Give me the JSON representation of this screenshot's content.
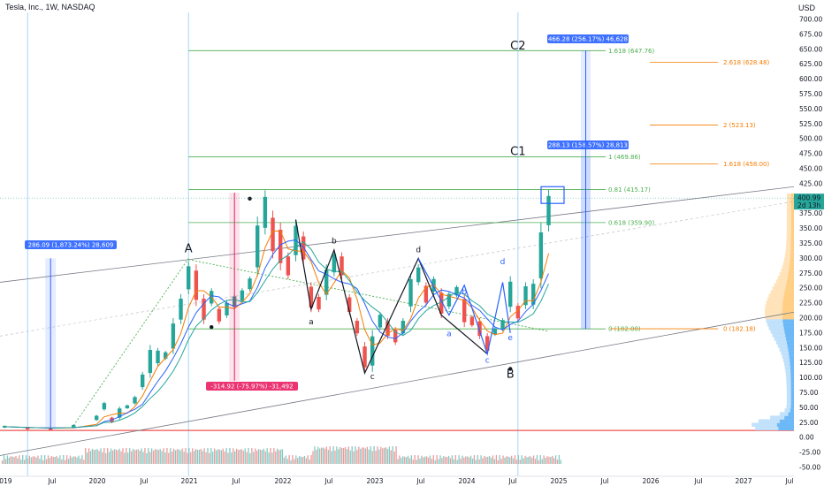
{
  "header": {
    "symbol_title": "Tesla, Inc., 1W, NASDAQ",
    "currency": "USD"
  },
  "colors": {
    "up": "#26a69a",
    "down": "#ef5350",
    "fib_green": "#4caf50",
    "fib_orange": "#f57c00",
    "measure_blue": "#2962ff",
    "drawing": "#131722",
    "wave_blue": "#2962ff",
    "price_tag": "#26a69a"
  },
  "price_axis": {
    "tag": "400.99",
    "tag_sub": "2d 13h"
  },
  "chart_data": {
    "type": "candlestick",
    "title": "Tesla, Inc., 1W, NASDAQ",
    "ylabel": "USD",
    "ylim": [
      -55,
      710
    ],
    "yticks": [
      "700.00",
      "675.00",
      "650.00",
      "625.00",
      "600.00",
      "575.00",
      "550.00",
      "525.00",
      "500.00",
      "475.00",
      "450.00",
      "425.00",
      "400.00",
      "375.00",
      "350.00",
      "325.00",
      "300.00",
      "275.00",
      "250.00",
      "225.00",
      "200.00",
      "175.00",
      "150.00",
      "125.00",
      "100.00",
      "75.00",
      "50.00",
      "25.00",
      "0.00",
      "-25.00",
      "-50.00"
    ],
    "xticks": [
      "2019",
      "Jul",
      "2020",
      "Jul",
      "2021",
      "Jul",
      "2022",
      "Jul",
      "2023",
      "Jul",
      "2024",
      "Jul",
      "2025",
      "Jul",
      "2026",
      "Jul",
      "2027",
      "Jul"
    ],
    "xlim": [
      "2019-01",
      "2027-10"
    ],
    "series": [
      {
        "name": "TSLA",
        "values": [
          [
            "2019-01",
            20.3,
            16.0
          ],
          [
            "2019-04",
            18.0,
            13.0
          ],
          [
            "2019-07",
            16.0,
            12.5
          ],
          [
            "2019-10",
            22.0,
            15.5
          ],
          [
            "2020-01",
            38.0,
            28.0
          ],
          [
            "2020-02",
            60.0,
            45.0
          ],
          [
            "2020-03",
            35.0,
            24.0
          ],
          [
            "2020-04",
            52.0,
            30.0
          ],
          [
            "2020-05",
            55.0,
            48.0
          ],
          [
            "2020-06",
            70.0,
            55.0
          ],
          [
            "2020-07",
            110.0,
            80.0
          ],
          [
            "2020-08",
            155.0,
            100.0
          ],
          [
            "2020-09",
            150.0,
            120.0
          ],
          [
            "2020-10",
            145.0,
            130.0
          ],
          [
            "2020-11",
            200.0,
            140.0
          ],
          [
            "2020-12",
            240.0,
            190.0
          ],
          [
            "2021-01",
            295.0,
            240.0
          ],
          [
            "2021-02",
            290.0,
            220.0
          ],
          [
            "2021-03",
            240.0,
            190.0
          ],
          [
            "2021-04",
            250.0,
            220.0
          ],
          [
            "2021-05",
            220.0,
            190.0
          ],
          [
            "2021-06",
            230.0,
            200.0
          ],
          [
            "2021-07",
            240.0,
            215.0
          ],
          [
            "2021-08",
            250.0,
            225.0
          ],
          [
            "2021-09",
            270.0,
            245.0
          ],
          [
            "2021-10",
            370.0,
            270.0
          ],
          [
            "2021-11",
            414.0,
            340.0
          ],
          [
            "2021-12",
            380.0,
            300.0
          ],
          [
            "2022-01",
            360.0,
            280.0
          ],
          [
            "2022-02",
            310.0,
            265.0
          ],
          [
            "2022-03",
            365.0,
            295.0
          ],
          [
            "2022-04",
            345.0,
            290.0
          ],
          [
            "2022-05",
            260.0,
            210.0
          ],
          [
            "2022-06",
            240.0,
            210.0
          ],
          [
            "2022-07",
            290.0,
            230.0
          ],
          [
            "2022-08",
            314.0,
            270.0
          ],
          [
            "2022-09",
            310.0,
            265.0
          ],
          [
            "2022-10",
            240.0,
            205.0
          ],
          [
            "2022-11",
            200.0,
            170.0
          ],
          [
            "2022-12",
            160.0,
            110.0
          ],
          [
            "2023-01",
            180.0,
            110.0
          ],
          [
            "2023-02",
            210.0,
            180.0
          ],
          [
            "2023-03",
            200.0,
            165.0
          ],
          [
            "2023-04",
            185.0,
            155.0
          ],
          [
            "2023-05",
            200.0,
            170.0
          ],
          [
            "2023-06",
            275.0,
            210.0
          ],
          [
            "2023-07",
            290.0,
            255.0
          ],
          [
            "2023-08",
            260.0,
            220.0
          ],
          [
            "2023-09",
            270.0,
            240.0
          ],
          [
            "2023-10",
            250.0,
            200.0
          ],
          [
            "2023-11",
            245.0,
            215.0
          ],
          [
            "2023-12",
            255.0,
            235.0
          ],
          [
            "2024-01",
            240.0,
            185.0
          ],
          [
            "2024-02",
            205.0,
            185.0
          ],
          [
            "2024-03",
            200.0,
            165.0
          ],
          [
            "2024-04",
            175.0,
            140.0
          ],
          [
            "2024-05",
            185.0,
            170.0
          ],
          [
            "2024-06",
            200.0,
            178.0
          ],
          [
            "2024-07",
            270.0,
            210.0
          ],
          [
            "2024-08",
            225.0,
            195.0
          ],
          [
            "2024-09",
            260.0,
            215.0
          ],
          [
            "2024-10",
            265.0,
            215.0
          ],
          [
            "2024-11",
            360.0,
            250.0
          ],
          [
            "2024-12",
            415.0,
            345.0
          ]
        ]
      }
    ],
    "legend": "none",
    "grid": false
  },
  "annotations": {
    "wave_labels": [
      {
        "text": "A",
        "date": "2021-01",
        "price": 310,
        "color": "#131722",
        "big": true
      },
      {
        "text": "B",
        "date": "2024-07",
        "price": 100,
        "color": "#131722",
        "big": true
      },
      {
        "text": "C1",
        "date": "2024-08",
        "price": 473,
        "color": "#131722",
        "big": true
      },
      {
        "text": "C2",
        "date": "2024-08",
        "price": 650,
        "color": "#131722",
        "big": true
      },
      {
        "text": "a",
        "date": "2022-05",
        "price": 190,
        "color": "#131722",
        "big": false
      },
      {
        "text": "b",
        "date": "2022-08",
        "price": 325,
        "color": "#131722",
        "big": false
      },
      {
        "text": "c",
        "date": "2023-01",
        "price": 98,
        "color": "#131722",
        "big": false
      },
      {
        "text": "d",
        "date": "2023-07",
        "price": 310,
        "color": "#131722",
        "big": false
      },
      {
        "text": "a",
        "date": "2023-11",
        "price": 170,
        "color": "#2962ff",
        "big": false
      },
      {
        "text": "b",
        "date": "2024-01",
        "price": 240,
        "color": "#2962ff",
        "big": false
      },
      {
        "text": "d",
        "date": "2024-06",
        "price": 290,
        "color": "#2962ff",
        "big": false
      },
      {
        "text": "c",
        "date": "2024-04",
        "price": 125,
        "color": "#2962ff",
        "big": false
      },
      {
        "text": "e",
        "date": "2024-07",
        "price": 163,
        "color": "#2962ff",
        "big": false
      }
    ],
    "fib_green": [
      {
        "label": "1.618 (647.76)",
        "price": 647.76
      },
      {
        "label": "1 (469.86)",
        "price": 469.86
      },
      {
        "label": "0.81 (415.17)",
        "price": 415.17
      },
      {
        "label": "0.618 (359.90)",
        "price": 359.9
      },
      {
        "label": "0 (182.00)",
        "price": 182.0
      }
    ],
    "fib_orange": [
      {
        "label": "2.618 (628.48)",
        "price": 628.48
      },
      {
        "label": "2 (523.13)",
        "price": 523.13
      },
      {
        "label": "1.618 (458.00)",
        "price": 458.0
      },
      {
        "label": "0 (182.18)",
        "price": 182.18
      }
    ],
    "measure_boxes": [
      {
        "text": "286.09 (1,873.24%) 28,609",
        "color": "#2962ff"
      },
      {
        "text": "-314.92 (-75.97%) -31,492",
        "color": "#e91e63"
      },
      {
        "text": "288.13 (158.57%) 28,813",
        "color": "#2962ff"
      },
      {
        "text": "466.28 (256.17%) 46,628",
        "color": "#2962ff"
      }
    ]
  }
}
